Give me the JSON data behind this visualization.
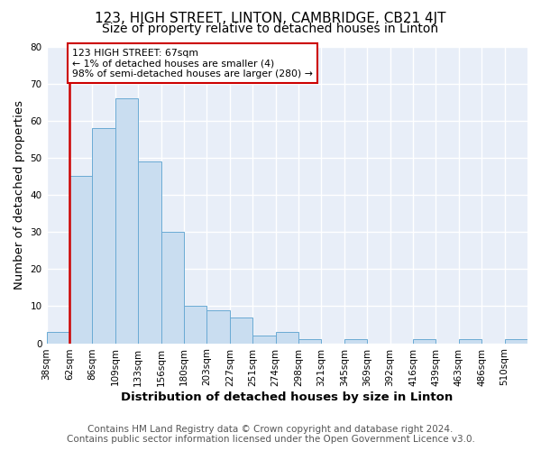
{
  "title": "123, HIGH STREET, LINTON, CAMBRIDGE, CB21 4JT",
  "subtitle": "Size of property relative to detached houses in Linton",
  "xlabel": "Distribution of detached houses by size in Linton",
  "ylabel": "Number of detached properties",
  "bin_labels": [
    "38sqm",
    "62sqm",
    "86sqm",
    "109sqm",
    "133sqm",
    "156sqm",
    "180sqm",
    "203sqm",
    "227sqm",
    "251sqm",
    "274sqm",
    "298sqm",
    "321sqm",
    "345sqm",
    "369sqm",
    "392sqm",
    "416sqm",
    "439sqm",
    "463sqm",
    "486sqm",
    "510sqm"
  ],
  "bar_heights": [
    3,
    45,
    58,
    66,
    49,
    30,
    10,
    9,
    7,
    2,
    3,
    1,
    0,
    1,
    0,
    0,
    1,
    0,
    1,
    0,
    1
  ],
  "bar_color": "#c9ddf0",
  "bar_edge_color": "#6aaad4",
  "marker_label_line1": "123 HIGH STREET: 67sqm",
  "marker_label_line2": "← 1% of detached houses are smaller (4)",
  "marker_label_line3": "98% of semi-detached houses are larger (280) →",
  "marker_color": "#cc0000",
  "annotation_box_color": "#cc0000",
  "ylim": [
    0,
    80
  ],
  "yticks": [
    0,
    10,
    20,
    30,
    40,
    50,
    60,
    70,
    80
  ],
  "footer_line1": "Contains HM Land Registry data © Crown copyright and database right 2024.",
  "footer_line2": "Contains public sector information licensed under the Open Government Licence v3.0.",
  "bg_color": "#ffffff",
  "plot_bg_color": "#e8eef8",
  "grid_color": "#ffffff",
  "title_fontsize": 11,
  "subtitle_fontsize": 10,
  "axis_label_fontsize": 9.5,
  "tick_fontsize": 7.5,
  "footer_fontsize": 7.5
}
